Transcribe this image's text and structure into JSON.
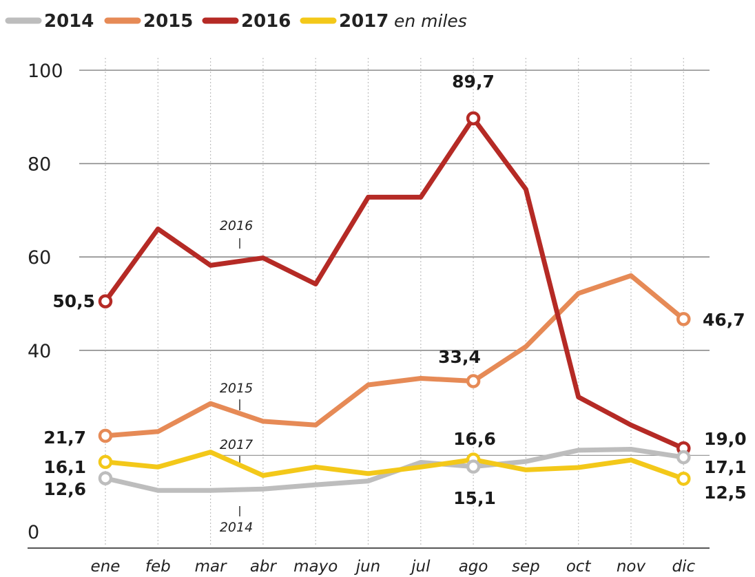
{
  "chart_data": {
    "type": "line",
    "unit": "en miles",
    "categories": [
      "ene",
      "feb",
      "mar",
      "abr",
      "mayo",
      "jun",
      "jul",
      "ago",
      "sep",
      "oct",
      "nov",
      "dic"
    ],
    "ylim": [
      0,
      100
    ],
    "yticks": [
      0,
      40,
      60,
      80,
      100
    ],
    "grid": true,
    "legend_position": "top-left",
    "series": [
      {
        "name": "2014",
        "color": "#bdbdbd",
        "values": [
          12.6,
          10.0,
          10.0,
          10.3,
          11.2,
          12.0,
          16.0,
          15.1,
          16.2,
          18.6,
          18.8,
          17.1
        ]
      },
      {
        "name": "2015",
        "color": "#e68a56",
        "values": [
          21.7,
          22.6,
          28.6,
          24.8,
          24.0,
          32.6,
          34.0,
          33.4,
          40.8,
          52.2,
          56.0,
          46.7
        ]
      },
      {
        "name": "2016",
        "color": "#b52a25",
        "values": [
          50.5,
          66.0,
          58.2,
          59.8,
          54.2,
          72.8,
          72.8,
          89.7,
          74.5,
          30.0,
          24.0,
          19.0
        ]
      },
      {
        "name": "2017",
        "color": "#f3c819",
        "values": [
          16.1,
          15.0,
          18.2,
          13.2,
          15.0,
          13.6,
          15.0,
          16.6,
          14.4,
          14.9,
          16.5,
          12.5
        ]
      }
    ],
    "series_labels": [
      {
        "series": "2016",
        "text": "2016"
      },
      {
        "series": "2015",
        "text": "2015"
      },
      {
        "series": "2017",
        "text": "2017"
      },
      {
        "series": "2014",
        "text": "2014"
      }
    ],
    "annotations": [
      {
        "series": "2016",
        "index": 0,
        "text": "50,5"
      },
      {
        "series": "2016",
        "index": 7,
        "text": "89,7"
      },
      {
        "series": "2016",
        "index": 11,
        "text": "19,0"
      },
      {
        "series": "2015",
        "index": 0,
        "text": "21,7"
      },
      {
        "series": "2015",
        "index": 7,
        "text": "33,4"
      },
      {
        "series": "2015",
        "index": 11,
        "text": "46,7"
      },
      {
        "series": "2017",
        "index": 0,
        "text": "16,1"
      },
      {
        "series": "2017",
        "index": 7,
        "text": "16,6"
      },
      {
        "series": "2017",
        "index": 11,
        "text": "12,5"
      },
      {
        "series": "2014",
        "index": 0,
        "text": "12,6"
      },
      {
        "series": "2014",
        "index": 7,
        "text": "15,1"
      },
      {
        "series": "2014",
        "index": 11,
        "text": "17,1"
      }
    ]
  }
}
